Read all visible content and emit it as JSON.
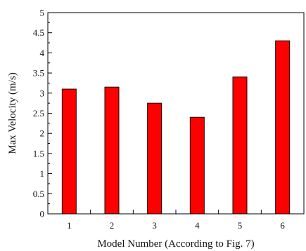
{
  "chart_data": {
    "type": "bar",
    "title": "",
    "xlabel": "Model Number (According to Fig. 7)",
    "ylabel": "Max Velocity (m/s)",
    "categories": [
      "1",
      "2",
      "3",
      "4",
      "5",
      "6"
    ],
    "values": [
      3.1,
      3.15,
      2.75,
      2.4,
      3.4,
      4.3
    ],
    "ylim": [
      0,
      5
    ],
    "yticks": [
      "0",
      "0.5",
      "1",
      "1.5",
      "2",
      "2.5",
      "3",
      "3.5",
      "4",
      "4.5",
      "5"
    ],
    "grid": false,
    "legend": "none",
    "colors": {
      "bar_fill": "#ff0000",
      "bar_stroke": "#1a0000",
      "axis": "#000000"
    }
  }
}
